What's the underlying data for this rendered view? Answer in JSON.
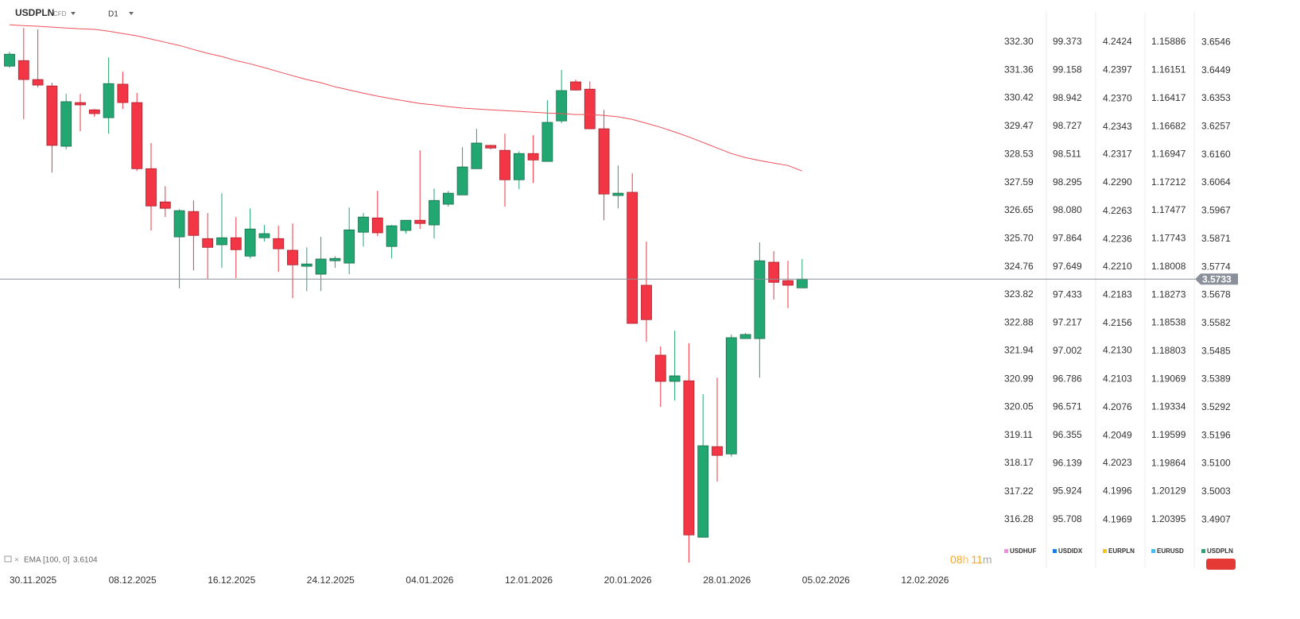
{
  "chart_data": {
    "type": "candlestick",
    "title": "USDPLN",
    "subtitle": "CFD",
    "timeframe": "D1",
    "x_labels": [
      "30.11.2025",
      "08.12.2025",
      "16.12.2025",
      "24.12.2025",
      "04.01.2026",
      "12.01.2026",
      "20.01.2026",
      "28.01.2026",
      "05.02.2026",
      "12.02.2026"
    ],
    "up_color": "#23a772",
    "down_color": "#f23645",
    "open": [
      3.6464,
      3.6483,
      3.6418,
      3.6396,
      3.6189,
      3.6339,
      3.6314,
      3.6287,
      3.6402,
      3.6339,
      3.6112,
      3.5998,
      3.5878,
      3.5965,
      3.5872,
      3.5851,
      3.5875,
      3.5812,
      3.5875,
      3.5872,
      3.5832,
      3.5777,
      3.575,
      3.5796,
      3.5788,
      3.5894,
      3.5943,
      3.5845,
      3.59,
      3.5935,
      3.5919,
      3.599,
      3.6022,
      3.6112,
      3.6192,
      3.6175,
      3.6074,
      3.6164,
      3.6137,
      3.6276,
      3.641,
      3.6385,
      3.6249,
      3.602,
      3.6031,
      3.5712,
      3.5472,
      3.5382,
      3.5384,
      3.4847,
      3.5158,
      3.5133,
      3.5529,
      3.5529,
      3.5791,
      3.5728,
      3.5703
    ],
    "high": [
      3.6513,
      3.6595,
      3.659,
      3.6407,
      3.6369,
      3.6369,
      3.6317,
      3.6494,
      3.6445,
      3.6372,
      3.62,
      3.6052,
      3.5973,
      3.6003,
      3.596,
      3.6028,
      3.5946,
      3.5976,
      3.5919,
      3.5916,
      3.5924,
      3.5842,
      3.5878,
      3.5812,
      3.5979,
      3.596,
      3.6036,
      3.5919,
      3.5935,
      3.6175,
      3.6044,
      3.6036,
      3.6186,
      3.6249,
      3.6194,
      3.6232,
      3.6172,
      3.6227,
      3.6347,
      3.6451,
      3.6418,
      3.6412,
      3.6314,
      3.6123,
      3.6096,
      3.5862,
      3.5502,
      3.5556,
      3.5513,
      3.5338,
      3.5395,
      3.5543,
      3.5548,
      3.5859,
      3.5829,
      3.5796,
      3.5802
    ],
    "low": [
      3.6459,
      3.6282,
      3.6391,
      3.6099,
      3.6178,
      3.6241,
      3.629,
      3.6232,
      3.6317,
      3.6104,
      3.59,
      3.5946,
      3.5701,
      3.5763,
      3.5733,
      3.5772,
      3.5736,
      3.5804,
      3.5862,
      3.5758,
      3.5668,
      3.5692,
      3.5692,
      3.5772,
      3.575,
      3.5845,
      3.5881,
      3.5804,
      3.5889,
      3.5905,
      3.5872,
      3.5982,
      3.6022,
      3.6112,
      3.6178,
      3.5982,
      3.6042,
      3.6063,
      3.6137,
      3.6268,
      3.638,
      3.6249,
      3.5935,
      3.5976,
      3.5581,
      3.5518,
      3.5294,
      3.5316,
      3.476,
      3.4847,
      3.5038,
      3.5123,
      3.5529,
      3.5395,
      3.5663,
      3.5633,
      3.5703
    ],
    "close": [
      3.6505,
      3.6418,
      3.6399,
      3.6192,
      3.6342,
      3.6331,
      3.6301,
      3.6404,
      3.6339,
      3.6112,
      3.5984,
      3.5976,
      3.5968,
      3.5883,
      3.5842,
      3.5875,
      3.5834,
      3.5905,
      3.5889,
      3.5837,
      3.5782,
      3.5785,
      3.5802,
      3.5804,
      3.5902,
      3.5946,
      3.5892,
      3.5916,
      3.5935,
      3.5924,
      3.6003,
      3.6028,
      3.6118,
      3.62,
      3.6183,
      3.6074,
      3.6164,
      3.6142,
      3.6271,
      3.638,
      3.6382,
      3.6249,
      3.6025,
      3.6028,
      3.5581,
      3.5594,
      3.5382,
      3.5401,
      3.4855,
      3.5161,
      3.5128,
      3.5532,
      3.5543,
      3.5796,
      3.5722,
      3.5712,
      3.5733
    ],
    "ema": {
      "name": "EMA",
      "params": "[100, 0]",
      "color": "#f0505a",
      "values": [
        3.6606,
        3.6603,
        3.6601,
        3.6598,
        3.6595,
        3.6592,
        3.659,
        3.6584,
        3.6576,
        3.6568,
        3.6557,
        3.6546,
        3.6535,
        3.6521,
        3.6508,
        3.6497,
        3.6483,
        3.6472,
        3.6459,
        3.6445,
        3.6431,
        3.6418,
        3.6407,
        3.6393,
        3.6382,
        3.6371,
        3.6361,
        3.6352,
        3.6344,
        3.6336,
        3.6331,
        3.6325,
        3.632,
        3.6317,
        3.6314,
        3.6311,
        3.6309,
        3.6306,
        3.6303,
        3.6301,
        3.6298,
        3.6298,
        3.6295,
        3.629,
        3.6281,
        3.6268,
        3.6254,
        3.6238,
        3.6221,
        3.6202,
        3.6183,
        3.6164,
        3.615,
        3.614,
        3.6131,
        3.6123,
        3.6104
      ]
    },
    "name": "USDPLN",
    "color": "#23a772",
    "ylim": [
      3.4741,
      3.6691
    ],
    "yticks": [
      3.6546,
      3.6449,
      3.6353,
      3.6257,
      {
        "value": 3.616,
        "label": "3.6160"
      },
      3.6064,
      3.5967,
      3.5871,
      3.5774,
      3.5678,
      3.5582,
      3.5485,
      3.5389,
      3.5292,
      3.5196,
      {
        "value": 3.51,
        "label": "3.5100"
      },
      3.5003,
      3.4907
    ],
    "scales": [
      {
        "name": "USDHUF",
        "color": "#f08fe0",
        "ylim": [
          314.65,
          333.71
        ],
        "yticks": [
          {
            "value": 332.3,
            "label": "332.30"
          },
          331.36,
          330.42,
          329.47,
          328.53,
          327.59,
          326.65,
          {
            "value": 325.7,
            "label": "325.70"
          },
          324.76,
          323.82,
          322.88,
          321.94,
          320.99,
          320.05,
          319.11,
          318.17,
          317.22,
          316.28
        ]
      },
      {
        "name": "USDIDX",
        "color": "#1e7be0",
        "ylim": [
          95.336,
          99.696
        ],
        "yticks": [
          99.373,
          99.158,
          98.942,
          98.727,
          98.511,
          98.295,
          {
            "value": 98.08,
            "label": "98.080"
          },
          97.864,
          97.649,
          97.433,
          97.217,
          97.002,
          96.786,
          96.571,
          96.355,
          96.139,
          95.924,
          95.708
        ]
      },
      {
        "name": "EURPLN",
        "color": "#f5c518",
        "ylim": [
          4.1923,
          4.2464
        ],
        "yticks": [
          4.2424,
          4.2397,
          {
            "value": 4.237,
            "label": "4.2370"
          },
          4.2343,
          4.2317,
          {
            "value": 4.229,
            "label": "4.2290"
          },
          4.2263,
          4.2236,
          {
            "value": 4.221,
            "label": "4.2210"
          },
          4.2183,
          4.2156,
          {
            "value": 4.213,
            "label": "4.2130"
          },
          4.2103,
          4.2076,
          4.2049,
          4.2023,
          4.1996,
          4.1969
        ]
      },
      {
        "name": "EURUSD",
        "color": "#4db8f0",
        "ylim": [
          1.20853,
          1.15488
        ],
        "yticks": [
          1.15886,
          1.16151,
          1.16417,
          1.16682,
          1.16947,
          1.17212,
          1.17477,
          1.17743,
          1.18008,
          1.18273,
          1.18538,
          1.18803,
          1.19069,
          1.19334,
          1.19599,
          1.19864,
          1.20129,
          1.20395
        ]
      }
    ],
    "timer": [
      "08",
      "h",
      "11",
      "m"
    ]
  }
}
